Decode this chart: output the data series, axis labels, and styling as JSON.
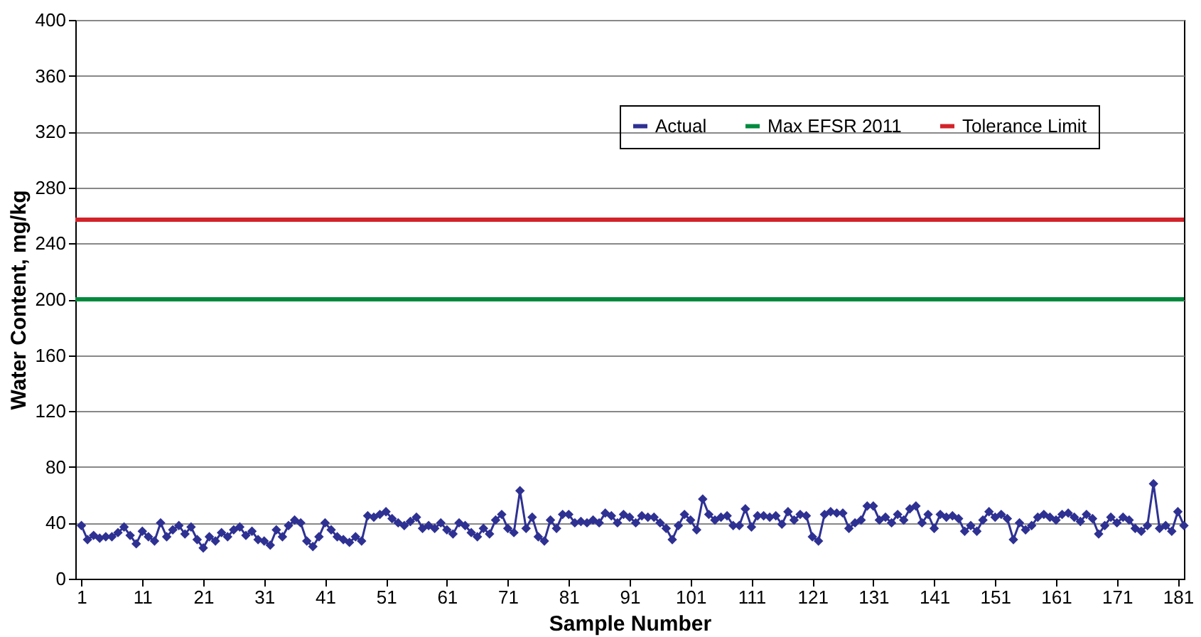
{
  "chart_data": {
    "type": "line",
    "xlabel": "Sample Number",
    "ylabel": "Water Content, mg/kg",
    "x": [
      1,
      2,
      3,
      4,
      5,
      6,
      7,
      8,
      9,
      10,
      11,
      12,
      13,
      14,
      15,
      16,
      17,
      18,
      19,
      20,
      21,
      22,
      23,
      24,
      25,
      26,
      27,
      28,
      29,
      30,
      31,
      32,
      33,
      34,
      35,
      36,
      37,
      38,
      39,
      40,
      41,
      42,
      43,
      44,
      45,
      46,
      47,
      48,
      49,
      50,
      51,
      52,
      53,
      54,
      55,
      56,
      57,
      58,
      59,
      60,
      61,
      62,
      63,
      64,
      65,
      66,
      67,
      68,
      69,
      70,
      71,
      72,
      73,
      74,
      75,
      76,
      77,
      78,
      79,
      80,
      81,
      82,
      83,
      84,
      85,
      86,
      87,
      88,
      89,
      90,
      91,
      92,
      93,
      94,
      95,
      96,
      97,
      98,
      99,
      100,
      101,
      102,
      103,
      104,
      105,
      106,
      107,
      108,
      109,
      110,
      111,
      112,
      113,
      114,
      115,
      116,
      117,
      118,
      119,
      120,
      121,
      122,
      123,
      124,
      125,
      126,
      127,
      128,
      129,
      130,
      131,
      132,
      133,
      134,
      135,
      136,
      137,
      138,
      139,
      140,
      141,
      142,
      143,
      144,
      145,
      146,
      147,
      148,
      149,
      150,
      151,
      152,
      153,
      154,
      155,
      156,
      157,
      158,
      159,
      160,
      161,
      162,
      163,
      164,
      165,
      166,
      167,
      168,
      169,
      170,
      171,
      172,
      173,
      174,
      175,
      176,
      177,
      178,
      179,
      180,
      181,
      182
    ],
    "series": [
      {
        "name": "Actual",
        "color": "#2e3192",
        "values": [
          38,
          28,
          31,
          29,
          30,
          30,
          33,
          37,
          31,
          25,
          34,
          30,
          27,
          40,
          30,
          35,
          38,
          32,
          37,
          28,
          22,
          30,
          27,
          33,
          30,
          35,
          37,
          31,
          34,
          28,
          27,
          24,
          35,
          30,
          38,
          42,
          40,
          27,
          23,
          30,
          40,
          35,
          30,
          28,
          26,
          30,
          27,
          45,
          44,
          46,
          48,
          43,
          40,
          38,
          41,
          44,
          36,
          38,
          36,
          40,
          35,
          32,
          40,
          38,
          33,
          30,
          36,
          32,
          42,
          46,
          36,
          33,
          63,
          36,
          44,
          30,
          27,
          42,
          36,
          46,
          46,
          40,
          41,
          40,
          42,
          40,
          47,
          45,
          40,
          46,
          44,
          40,
          45,
          44,
          44,
          40,
          36,
          28,
          38,
          46,
          42,
          35,
          57,
          46,
          42,
          44,
          45,
          38,
          38,
          50,
          37,
          45,
          45,
          44,
          45,
          39,
          48,
          42,
          46,
          45,
          30,
          27,
          46,
          48,
          47,
          47,
          36,
          40,
          42,
          52,
          52,
          42,
          44,
          40,
          46,
          42,
          50,
          52,
          40,
          46,
          36,
          46,
          44,
          45,
          43,
          34,
          38,
          34,
          42,
          48,
          44,
          46,
          43,
          28,
          40,
          35,
          38,
          44,
          46,
          44,
          42,
          46,
          47,
          44,
          41,
          46,
          43,
          32,
          38,
          44,
          40,
          44,
          42,
          36,
          34,
          38,
          68,
          36,
          38,
          34,
          48,
          38
        ]
      }
    ],
    "ref_lines": [
      {
        "axis": "y",
        "value": 200,
        "label": "Max EFSR 2011",
        "color": "#008a3e"
      },
      {
        "axis": "y",
        "value": 257,
        "label": "Tolerance Limit",
        "color": "#d2232a"
      }
    ],
    "xlim": [
      0,
      182
    ],
    "xticks": [
      1,
      11,
      21,
      31,
      41,
      51,
      61,
      71,
      81,
      91,
      101,
      111,
      121,
      131,
      141,
      151,
      161,
      171,
      181
    ],
    "ylim": [
      0,
      400
    ],
    "yticks": [
      0,
      40,
      80,
      120,
      160,
      200,
      240,
      280,
      320,
      360,
      400
    ],
    "grid": "y",
    "legend": "top right",
    "marker": "diamond",
    "line_style": "solid"
  }
}
